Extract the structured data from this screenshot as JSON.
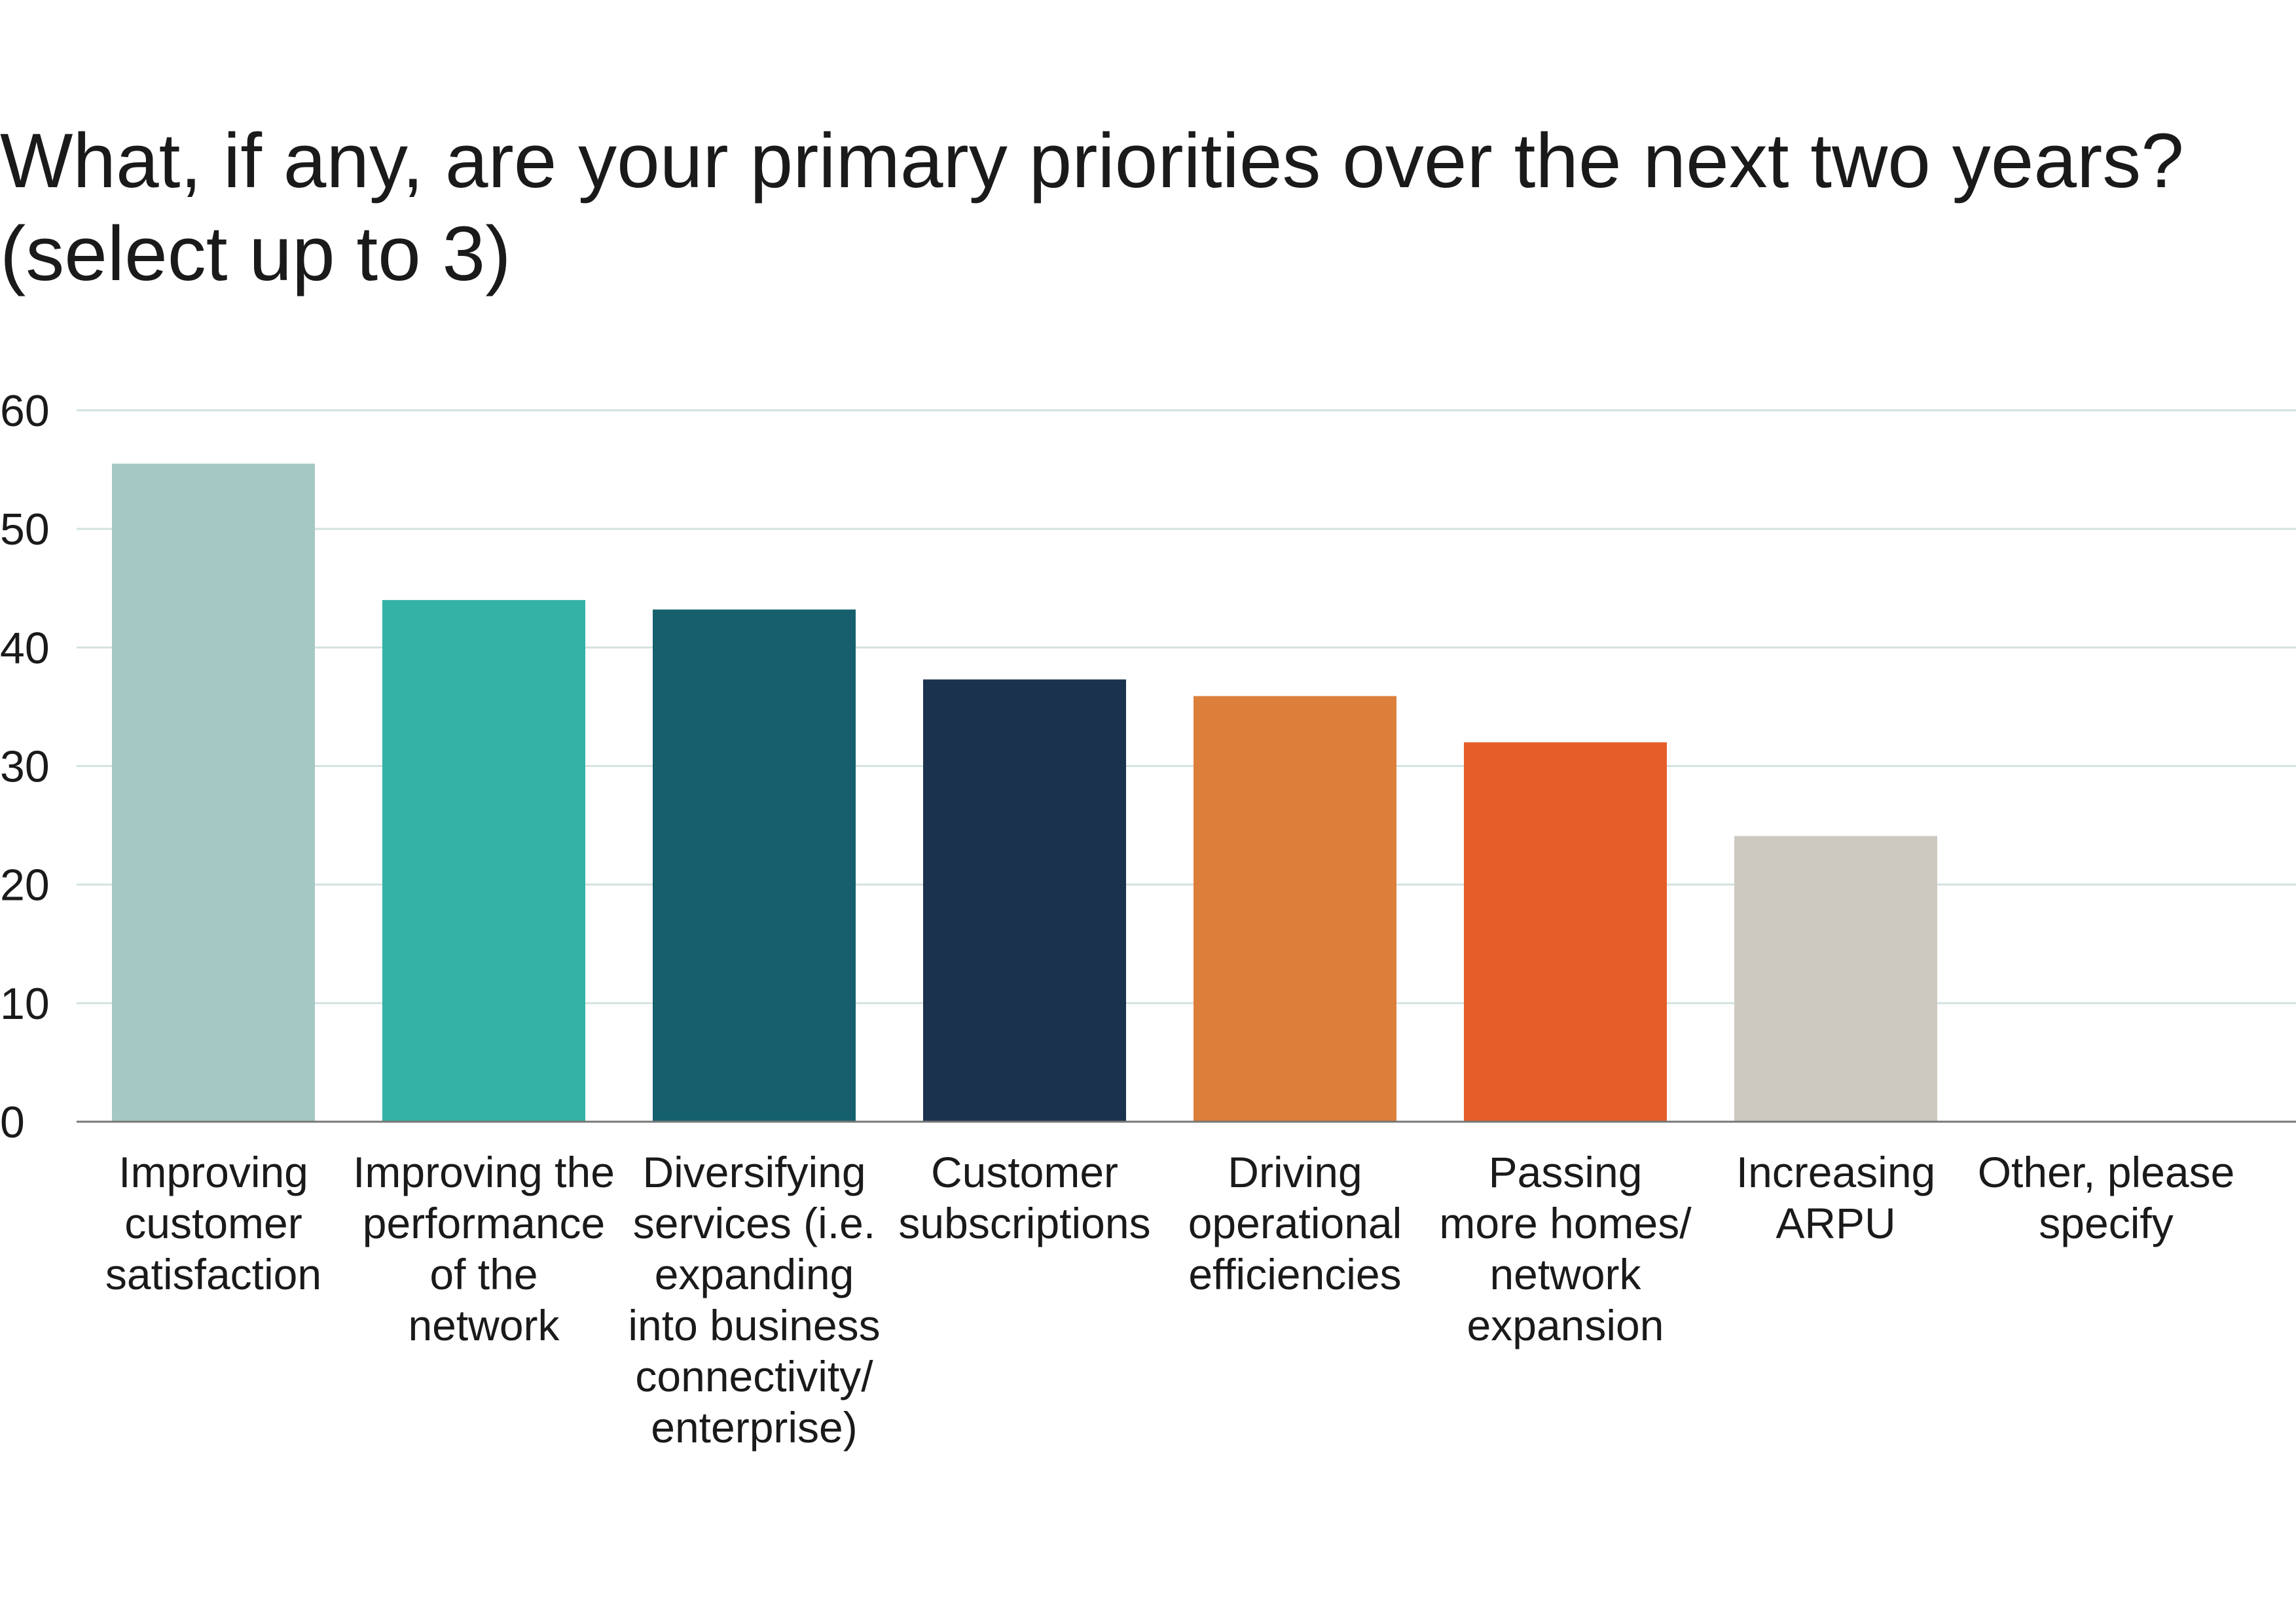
{
  "chart_data": {
    "type": "bar",
    "title": "What, if any, are your primary priorities over the next two years?",
    "subtitle": "(select up to 3)",
    "xlabel": "",
    "ylabel": "",
    "ylim": [
      0,
      60
    ],
    "yticks": [
      "0",
      "10",
      "20",
      "30",
      "40",
      "50",
      "60"
    ],
    "grid": true,
    "legend": "none",
    "categories": [
      "Improving\ncustomer\nsatisfaction",
      "Improving the\nperformance\nof the\nnetwork",
      "Diversifying\nservices (i.e.\nexpanding\ninto business\nconnectivity/\nenterprise)",
      "Customer\nsubscriptions",
      "Driving\noperational\nefficiencies",
      "Passing\nmore homes/\nnetwork\nexpansion",
      "Increasing\nARPU",
      "Other, please\nspecify"
    ],
    "values": [
      55.5,
      44,
      43.2,
      37.3,
      35.9,
      32,
      24.1,
      0
    ],
    "colors": [
      "#a5c8c5",
      "#33b2a5",
      "#16606d",
      "#1a324d",
      "#dc7f3b",
      "#e55e29",
      "#cdc9c0",
      "#ffffff"
    ],
    "gridline_color": "#d3e2e0",
    "axis_color": "#777777"
  }
}
